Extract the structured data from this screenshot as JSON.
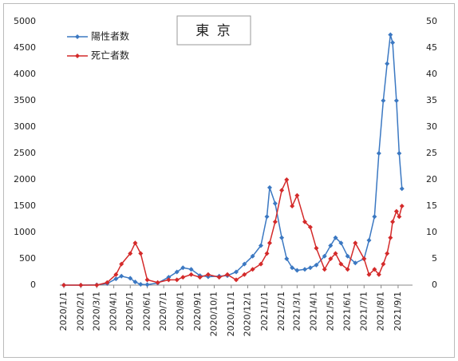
{
  "chart_data": {
    "type": "line",
    "title": "東 京",
    "x": [
      "2020/1/1",
      "2020/2/1",
      "2020/3/1",
      "2020/3/20",
      "2020/4/5",
      "2020/4/15",
      "2020/5/1",
      "2020/5/10",
      "2020/5/20",
      "2020/6/1",
      "2020/6/20",
      "2020/7/10",
      "2020/7/25",
      "2020/8/5",
      "2020/8/20",
      "2020/9/5",
      "2020/9/20",
      "2020/10/10",
      "2020/10/25",
      "2020/11/10",
      "2020/11/25",
      "2020/12/10",
      "2020/12/25",
      "2021/1/5",
      "2021/1/10",
      "2021/1/20",
      "2021/2/1",
      "2021/2/10",
      "2021/2/20",
      "2021/3/1",
      "2021/3/15",
      "2021/3/25",
      "2021/4/5",
      "2021/4/20",
      "2021/5/1",
      "2021/5/10",
      "2021/5/20",
      "2021/6/1",
      "2021/6/15",
      "2021/7/1",
      "2021/7/10",
      "2021/7/20",
      "2021/7/28",
      "2021/8/5",
      "2021/8/12",
      "2021/8/18",
      "2021/8/22",
      "2021/8/29",
      "2021/9/3",
      "2021/9/8"
    ],
    "series": [
      {
        "name": "陽性者数",
        "color": "#3b78c2",
        "values": [
          0,
          0,
          5,
          30,
          120,
          170,
          130,
          60,
          15,
          10,
          40,
          150,
          250,
          330,
          300,
          180,
          160,
          170,
          180,
          250,
          400,
          550,
          750,
          1300,
          1850,
          1550,
          900,
          500,
          330,
          280,
          300,
          330,
          380,
          550,
          750,
          900,
          800,
          550,
          420,
          500,
          850,
          1300,
          2500,
          3500,
          4200,
          4750,
          4600,
          3500,
          2500,
          1830
        ]
      },
      {
        "name": "死亡者数",
        "color": "#d42a2a",
        "axis": "y2",
        "values": [
          0,
          0,
          0,
          0.5,
          2,
          4,
          6,
          8,
          6,
          1,
          0.5,
          1,
          1,
          1.5,
          2,
          1.5,
          2,
          1.5,
          2,
          1,
          2,
          3,
          4,
          6,
          8,
          12,
          18,
          20,
          15,
          17,
          12,
          11,
          7,
          3,
          5,
          6,
          4,
          3,
          8,
          5,
          2,
          3,
          2,
          4,
          6,
          9,
          12,
          14,
          13,
          15
        ]
      }
    ],
    "xlim": [
      "2020/1/1",
      "2021/9/20"
    ],
    "xticks": [
      "2020/1/1",
      "2020/2/1",
      "2020/3/1",
      "2020/4/1",
      "2020/5/1",
      "2020/6/1",
      "2020/7/1",
      "2020/8/1",
      "2020/9/1",
      "2020/10/1",
      "2020/11/1",
      "2020/12/1",
      "2021/1/1",
      "2021/2/1",
      "2021/3/1",
      "2021/4/1",
      "2021/5/1",
      "2021/6/1",
      "2021/7/1",
      "2021/8/1",
      "2021/9/1"
    ],
    "ylim": [
      0,
      5000
    ],
    "yticks": [
      0,
      500,
      1000,
      1500,
      2000,
      2500,
      3000,
      3500,
      4000,
      4500,
      5000
    ],
    "y2lim": [
      0,
      50
    ],
    "y2ticks": [
      0,
      5,
      10,
      15,
      20,
      25,
      30,
      35,
      40,
      45,
      50
    ],
    "grid": false
  }
}
